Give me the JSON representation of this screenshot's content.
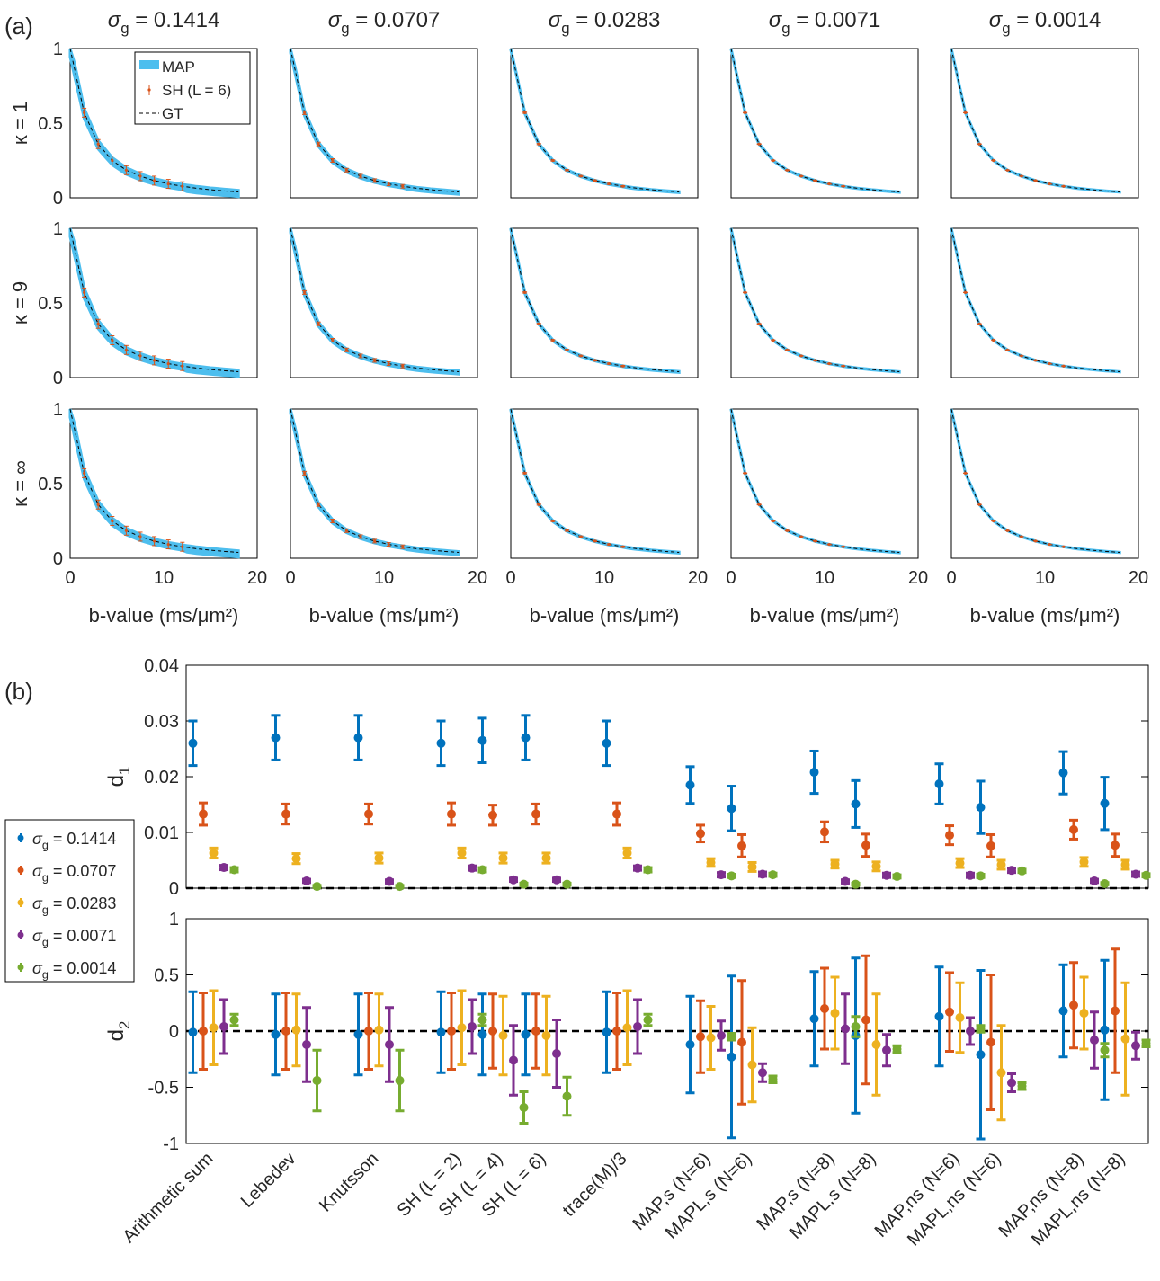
{
  "panel_labels": {
    "a": "(a)",
    "b": "(b)"
  },
  "chart_data": [
    {
      "type": "line",
      "panel": "(a)",
      "column_titles": [
        "σg = 0.1414",
        "σg = 0.0707",
        "σg = 0.0283",
        "σg = 0.0071",
        "σg = 0.0014"
      ],
      "row_labels": [
        "κ = 1",
        "κ = 9",
        "κ = ∞"
      ],
      "xlabel": "b-value (ms/μm²)",
      "xlim": [
        0,
        20
      ],
      "ylim": [
        0,
        1
      ],
      "xticks": [
        "0",
        "10",
        "20"
      ],
      "yticks": [
        "0",
        "0.5",
        "1"
      ],
      "legend": {
        "position": "top-right",
        "entries": [
          "MAP",
          "SH (L = 6)",
          "GT"
        ]
      },
      "colors": {
        "map_band": "#4DBEEE",
        "sh_points": "#D95319",
        "gt_line": "#000000"
      },
      "gt_curve": {
        "x": [
          0,
          1.5,
          3,
          4.5,
          6,
          7.5,
          9,
          10.5,
          12,
          13.5,
          15,
          16.5,
          18
        ],
        "y": [
          1.0,
          0.57,
          0.36,
          0.25,
          0.185,
          0.145,
          0.115,
          0.093,
          0.077,
          0.064,
          0.054,
          0.046,
          0.039
        ]
      },
      "sh_points_x": [
        1.5,
        3,
        4.5,
        6,
        7.5,
        9,
        10.5,
        12
      ],
      "map_band_halfwidth_by_column": [
        0.035,
        0.018,
        0.006,
        0.003,
        0.002
      ],
      "sh_errorbar_halfwidth_by_column": [
        0.03,
        0.012,
        0.004,
        0.002,
        0.001
      ]
    },
    {
      "type": "scatter",
      "panel": "(b)",
      "categories": [
        "Arithmetic sum",
        "Lebedev",
        "Knutsson",
        "SH (L = 2)",
        "SH (L = 4)",
        "SH (L = 6)",
        "trace(M)/3",
        "MAP,s (N=6)",
        "MAPL,s (N=6)",
        "MAP,s (N=8)",
        "MAPL,s (N=8)",
        "MAP,ns (N=6)",
        "MAPL,ns (N=6)",
        "MAP,ns (N=8)",
        "MAPL,ns (N=8)"
      ],
      "legend": {
        "position": "left",
        "entries": [
          "σg = 0.1414",
          "σg = 0.0707",
          "σg = 0.0283",
          "σg = 0.0071",
          "σg = 0.0014"
        ]
      },
      "colors": [
        "#0072BD",
        "#D95319",
        "#EDB120",
        "#7E2F8E",
        "#77AC30"
      ],
      "subplots": [
        {
          "ylabel": "d1",
          "ylim": [
            0,
            0.04
          ],
          "yticks": [
            "0",
            "0.01",
            "0.02",
            "0.03",
            "0.04"
          ],
          "series": [
            {
              "name": "σg = 0.1414",
              "values": [
                0.026,
                0.027,
                0.027,
                0.026,
                0.0265,
                0.027,
                0.026,
                0.0185,
                0.0143,
                0.0208,
                0.0151,
                0.0187,
                0.0145,
                0.0207,
                0.0152
              ],
              "errors": [
                0.004,
                0.004,
                0.004,
                0.004,
                0.004,
                0.004,
                0.004,
                0.0033,
                0.004,
                0.0038,
                0.0042,
                0.0036,
                0.0047,
                0.0038,
                0.0047
              ]
            },
            {
              "name": "σg = 0.0707",
              "values": [
                0.0133,
                0.0133,
                0.0133,
                0.0133,
                0.0131,
                0.0133,
                0.0133,
                0.0098,
                0.0076,
                0.0101,
                0.0077,
                0.0095,
                0.0076,
                0.0105,
                0.0077
              ],
              "errors": [
                0.002,
                0.0018,
                0.0018,
                0.002,
                0.0018,
                0.0018,
                0.002,
                0.0015,
                0.002,
                0.0018,
                0.002,
                0.0017,
                0.002,
                0.0017,
                0.002
              ]
            },
            {
              "name": "σg = 0.0283",
              "values": [
                0.0063,
                0.0053,
                0.0054,
                0.0063,
                0.0054,
                0.0054,
                0.0063,
                0.0046,
                0.0038,
                0.0043,
                0.0039,
                0.0045,
                0.0042,
                0.0047,
                0.0042
              ],
              "errors": [
                0.0009,
                0.0009,
                0.0009,
                0.0009,
                0.0009,
                0.0009,
                0.0009,
                0.0007,
                0.0008,
                0.0007,
                0.0008,
                0.0008,
                0.0008,
                0.0008,
                0.0008
              ]
            },
            {
              "name": "σg = 0.0071",
              "values": [
                0.0037,
                0.0013,
                0.0012,
                0.0036,
                0.0015,
                0.0015,
                0.0036,
                0.0024,
                0.0025,
                0.0012,
                0.0023,
                0.0023,
                0.0032,
                0.0013,
                0.0025
              ],
              "errors": [
                0.0004,
                0.0003,
                0.0003,
                0.0004,
                0.0003,
                0.0003,
                0.0004,
                0.0004,
                0.0004,
                0.0003,
                0.0004,
                0.0004,
                0.0004,
                0.0003,
                0.0004
              ]
            },
            {
              "name": "σg = 0.0014",
              "values": [
                0.0033,
                0.0003,
                0.0003,
                0.0033,
                0.0007,
                0.0007,
                0.0033,
                0.0022,
                0.0024,
                0.0007,
                0.0021,
                0.0022,
                0.0031,
                0.0008,
                0.0023
              ],
              "errors": [
                0.0004,
                0.0002,
                0.0002,
                0.0004,
                0.0002,
                0.0002,
                0.0004,
                0.0003,
                0.0003,
                0.0002,
                0.0003,
                0.0003,
                0.0003,
                0.0002,
                0.0003
              ]
            }
          ]
        },
        {
          "ylabel": "d2",
          "ylim": [
            -1,
            1
          ],
          "yticks": [
            "-1",
            "-0.5",
            "0",
            "0.5",
            "1"
          ],
          "series": [
            {
              "name": "σg = 0.1414",
              "values": [
                -0.01,
                -0.03,
                -0.03,
                -0.01,
                -0.03,
                -0.03,
                -0.01,
                -0.12,
                -0.23,
                0.11,
                -0.04,
                0.13,
                -0.21,
                0.18,
                0.01
              ],
              "errors": [
                0.36,
                0.36,
                0.36,
                0.36,
                0.36,
                0.36,
                0.36,
                0.43,
                0.72,
                0.42,
                0.69,
                0.44,
                0.75,
                0.41,
                0.62
              ]
            },
            {
              "name": "σg = 0.0707",
              "values": [
                0.0,
                0.0,
                0.0,
                0.0,
                0.0,
                0.0,
                0.0,
                -0.05,
                -0.1,
                0.2,
                0.1,
                0.17,
                -0.1,
                0.23,
                0.18
              ],
              "errors": [
                0.34,
                0.34,
                0.34,
                0.34,
                0.33,
                0.33,
                0.34,
                0.32,
                0.55,
                0.36,
                0.57,
                0.35,
                0.6,
                0.38,
                0.55
              ]
            },
            {
              "name": "σg = 0.0283",
              "values": [
                0.03,
                0.01,
                0.01,
                0.03,
                -0.04,
                -0.04,
                0.03,
                -0.06,
                -0.3,
                0.16,
                -0.12,
                0.12,
                -0.37,
                0.16,
                -0.07
              ],
              "errors": [
                0.33,
                0.32,
                0.32,
                0.33,
                0.35,
                0.35,
                0.33,
                0.28,
                0.33,
                0.32,
                0.45,
                0.31,
                0.42,
                0.32,
                0.5
              ]
            },
            {
              "name": "σg = 0.0071",
              "values": [
                0.04,
                -0.12,
                -0.12,
                0.04,
                -0.26,
                -0.2,
                0.04,
                -0.04,
                -0.37,
                0.02,
                -0.17,
                0.0,
                -0.46,
                -0.08,
                -0.13
              ],
              "errors": [
                0.24,
                0.33,
                0.33,
                0.24,
                0.31,
                0.3,
                0.24,
                0.13,
                0.08,
                0.31,
                0.14,
                0.12,
                0.08,
                0.25,
                0.12
              ]
            },
            {
              "name": "σg = 0.0014",
              "values": [
                0.1,
                -0.44,
                -0.44,
                0.1,
                -0.68,
                -0.58,
                0.1,
                -0.05,
                -0.43,
                0.04,
                -0.16,
                0.02,
                -0.49,
                -0.17,
                -0.11
              ],
              "errors": [
                0.05,
                0.27,
                0.27,
                0.05,
                0.14,
                0.17,
                0.05,
                0.03,
                0.03,
                0.09,
                0.03,
                0.03,
                0.03,
                0.06,
                0.03
              ]
            }
          ]
        }
      ]
    }
  ]
}
